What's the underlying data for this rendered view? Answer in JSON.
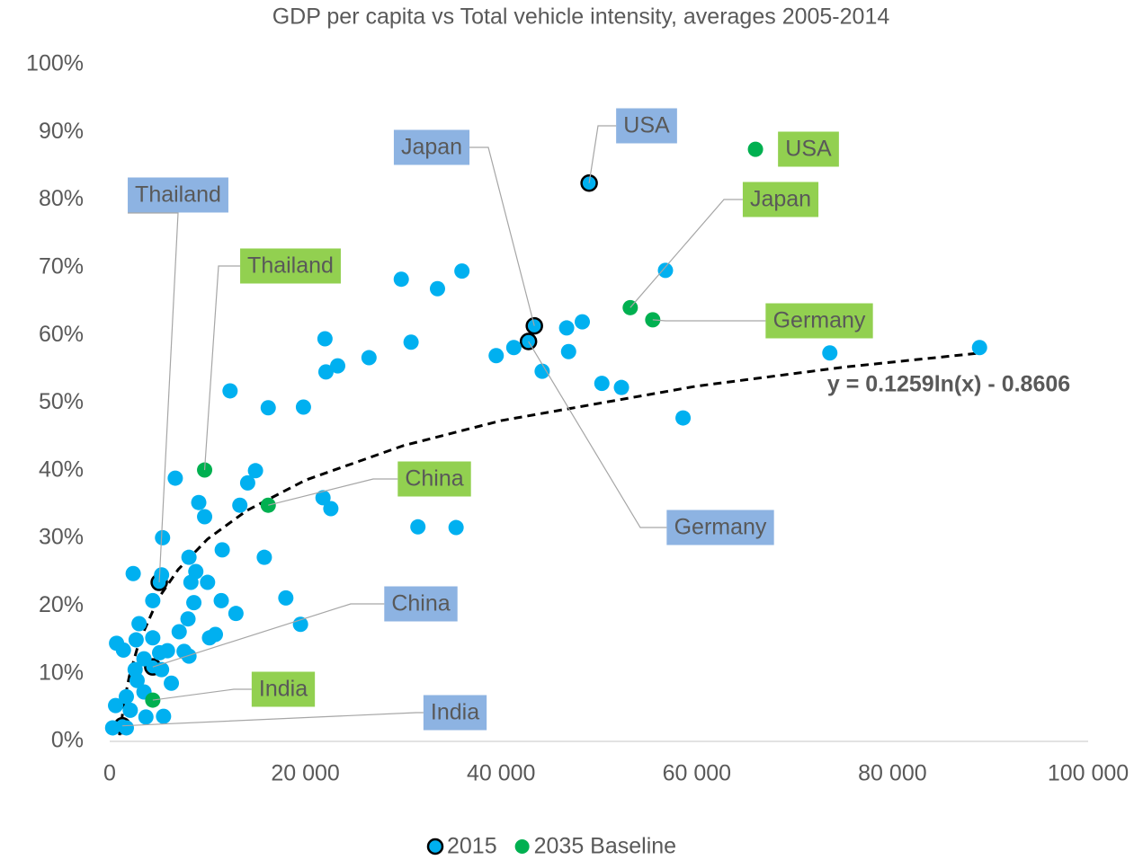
{
  "chart_data": {
    "type": "scatter",
    "title": "GDP per capita vs Total vehicle intensity, averages 2005-2014",
    "xlim": [
      0,
      100000
    ],
    "ylim": [
      0,
      100
    ],
    "xticks": [
      {
        "value": 0,
        "label": "0"
      },
      {
        "value": 20000,
        "label": "20 000"
      },
      {
        "value": 40000,
        "label": "40 000"
      },
      {
        "value": 60000,
        "label": "60 000"
      },
      {
        "value": 80000,
        "label": "80 000"
      },
      {
        "value": 100000,
        "label": "100 000"
      }
    ],
    "yticks": [
      {
        "value": 0,
        "label": "0%"
      },
      {
        "value": 10,
        "label": "10%"
      },
      {
        "value": 20,
        "label": "20%"
      },
      {
        "value": 30,
        "label": "30%"
      },
      {
        "value": 40,
        "label": "40%"
      },
      {
        "value": 50,
        "label": "50%"
      },
      {
        "value": 60,
        "label": "60%"
      },
      {
        "value": 70,
        "label": "70%"
      },
      {
        "value": 80,
        "label": "80%"
      },
      {
        "value": 90,
        "label": "90%"
      },
      {
        "value": 100,
        "label": "100%"
      }
    ],
    "legend": "bottom",
    "series": [
      {
        "name": "2015",
        "color": "#00b0f0",
        "edgecolor": "#000000",
        "label_color": "#8db3e2",
        "labels": [
          "USA",
          "Japan",
          "Germany",
          "Thailand",
          "China",
          "India",
          null,
          null,
          null,
          null,
          null,
          null,
          null,
          null,
          null,
          null,
          null,
          null,
          null,
          null,
          null,
          null,
          null,
          null,
          null,
          null,
          null,
          null,
          null,
          null,
          null,
          null,
          null,
          null,
          null,
          null,
          null,
          null,
          null,
          null,
          null,
          null,
          null,
          null,
          null,
          null,
          null,
          null,
          null,
          null,
          null,
          null,
          null,
          null,
          null,
          null,
          null,
          null,
          null,
          null,
          null,
          null,
          null,
          null,
          null,
          null,
          null,
          null,
          null,
          null,
          null,
          null,
          null,
          null,
          null,
          null,
          null,
          null,
          null,
          null
        ],
        "x": [
          49000,
          43400,
          42800,
          5060,
          4400,
          1290,
          56800,
          36000,
          29800,
          33500,
          48300,
          46700,
          46900,
          41300,
          39500,
          44200,
          22000,
          30800,
          26500,
          23300,
          22100,
          50300,
          52300,
          58600,
          73600,
          88900,
          12300,
          16200,
          19800,
          14900,
          14100,
          6700,
          9100,
          9700,
          13300,
          21800,
          22600,
          31500,
          35400,
          5400,
          8100,
          11500,
          15800,
          2400,
          5300,
          8800,
          8300,
          10000,
          4400,
          8600,
          11400,
          12900,
          18000,
          19500,
          3000,
          8000,
          7100,
          2700,
          700,
          1400,
          4400,
          10200,
          10800,
          5100,
          5900,
          3500,
          7600,
          8100,
          5300,
          2600,
          6300,
          2800,
          3500,
          1700,
          600,
          2100,
          3700,
          5500,
          300,
          1700
        ],
        "values": [
          82.5,
          61.4,
          59.1,
          23.5,
          11.0,
          2.3,
          69.6,
          69.5,
          68.3,
          66.9,
          62.0,
          61.1,
          57.6,
          58.2,
          57.0,
          54.7,
          59.5,
          59.0,
          56.7,
          55.5,
          54.6,
          52.9,
          52.3,
          47.8,
          57.4,
          58.2,
          51.8,
          49.3,
          49.4,
          40.0,
          38.2,
          38.9,
          35.3,
          33.2,
          34.9,
          36.0,
          34.4,
          31.7,
          31.6,
          30.1,
          27.2,
          28.3,
          27.2,
          24.8,
          24.6,
          25.1,
          23.5,
          23.5,
          20.8,
          20.5,
          20.8,
          18.9,
          21.2,
          17.3,
          17.4,
          18.1,
          16.2,
          15.0,
          14.5,
          13.5,
          15.3,
          15.3,
          15.8,
          13.1,
          13.4,
          12.2,
          13.3,
          12.6,
          10.6,
          10.6,
          8.6,
          9.0,
          7.3,
          6.6,
          5.3,
          4.6,
          3.6,
          3.7,
          2.0,
          2.0
        ]
      },
      {
        "name": "2035 Baseline",
        "color": "#00b050",
        "label_color": "#92d050",
        "labels": [
          "USA",
          "Japan",
          "Germany",
          "Thailand",
          "China",
          "India"
        ],
        "x": [
          66000,
          53200,
          55500,
          9700,
          16200,
          4400
        ],
        "values": [
          87.5,
          64.1,
          62.3,
          40.1,
          34.9,
          6.1
        ]
      }
    ],
    "trendline": {
      "label": "y = 0.1259ln(x) - 0.8606",
      "color": "#000000",
      "x": [
        1000,
        1500,
        2000,
        3000,
        5000,
        7000,
        10000,
        14000,
        20000,
        30000,
        40000,
        60000,
        75000,
        89000
      ],
      "values": [
        0.9,
        6.0,
        9.6,
        14.7,
        21.2,
        25.4,
        29.9,
        34.1,
        38.6,
        43.7,
        47.4,
        52.5,
        55.3,
        57.4
      ]
    }
  }
}
